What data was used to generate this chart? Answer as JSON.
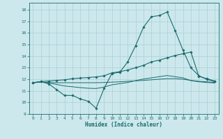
{
  "xlabel": "Humidex (Indice chaleur)",
  "bg_color": "#cce8ec",
  "grid_color": "#aacfd4",
  "line_color": "#1a6b6e",
  "xlim": [
    -0.5,
    23.5
  ],
  "ylim": [
    9,
    18.6
  ],
  "yticks": [
    9,
    10,
    11,
    12,
    13,
    14,
    15,
    16,
    17,
    18
  ],
  "xticks": [
    0,
    1,
    2,
    3,
    4,
    5,
    6,
    7,
    8,
    9,
    10,
    11,
    12,
    13,
    14,
    15,
    16,
    17,
    18,
    19,
    20,
    21,
    22,
    23
  ],
  "line1_x": [
    0,
    1,
    2,
    3,
    4,
    5,
    6,
    7,
    8,
    9,
    10,
    11,
    12,
    13,
    14,
    15,
    16,
    17,
    18,
    19,
    20,
    21,
    22,
    23
  ],
  "line1_y": [
    11.7,
    11.8,
    11.6,
    11.1,
    10.6,
    10.6,
    10.3,
    10.1,
    9.5,
    11.2,
    12.5,
    12.6,
    13.5,
    14.9,
    16.5,
    17.4,
    17.5,
    17.8,
    16.2,
    14.5,
    13.0,
    12.3,
    12.0,
    11.8
  ],
  "line2_x": [
    0,
    1,
    2,
    3,
    4,
    5,
    6,
    7,
    8,
    9,
    10,
    11,
    12,
    13,
    14,
    15,
    16,
    17,
    18,
    19,
    20,
    21,
    22,
    23
  ],
  "line2_y": [
    11.7,
    11.8,
    11.85,
    11.9,
    11.95,
    12.05,
    12.1,
    12.15,
    12.2,
    12.3,
    12.55,
    12.65,
    12.8,
    13.0,
    13.2,
    13.5,
    13.65,
    13.85,
    14.05,
    14.2,
    14.35,
    12.25,
    12.05,
    11.85
  ],
  "line3_x": [
    0,
    1,
    2,
    3,
    4,
    5,
    6,
    7,
    8,
    9,
    10,
    11,
    12,
    13,
    14,
    15,
    16,
    17,
    18,
    19,
    20,
    21,
    22,
    23
  ],
  "line3_y": [
    11.7,
    11.75,
    11.72,
    11.7,
    11.7,
    11.7,
    11.7,
    11.7,
    11.7,
    11.72,
    11.75,
    11.78,
    11.82,
    11.86,
    11.9,
    11.95,
    12.0,
    12.05,
    12.05,
    12.0,
    11.9,
    11.82,
    11.78,
    11.72
  ],
  "line4_x": [
    0,
    1,
    2,
    3,
    4,
    5,
    6,
    7,
    8,
    9,
    10,
    11,
    12,
    13,
    14,
    15,
    16,
    17,
    18,
    19,
    20,
    21,
    22,
    23
  ],
  "line4_y": [
    11.7,
    11.75,
    11.68,
    11.55,
    11.42,
    11.35,
    11.28,
    11.22,
    11.2,
    11.32,
    11.52,
    11.62,
    11.72,
    11.88,
    12.02,
    12.12,
    12.22,
    12.32,
    12.22,
    12.12,
    11.88,
    11.78,
    11.72,
    11.68
  ]
}
